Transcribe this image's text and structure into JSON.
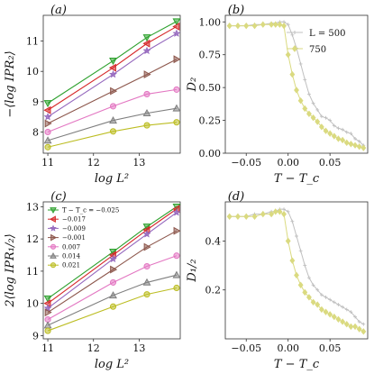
{
  "colors": {
    "green": "#2ca02c",
    "red": "#d62728",
    "purple": "#9467bd",
    "brown": "#8c564b",
    "pink": "#e377c2",
    "gray": "#7f7f7f",
    "olive": "#bcbd22",
    "lightgray": "#c0c0c0",
    "khaki": "#dada80"
  },
  "chart_data": [
    {
      "id": "a",
      "panel_label": "(a)",
      "type": "line",
      "xlabel": "log L²",
      "ylabel": "−⟨log IPR₂⟩",
      "xlim": [
        10.9,
        13.9
      ],
      "ylim": [
        7.3,
        11.85
      ],
      "xticks": [
        "11",
        "12",
        "13"
      ],
      "yticks": [
        "8",
        "9",
        "10",
        "11"
      ],
      "x": [
        11.0,
        12.43,
        13.17,
        13.82
      ],
      "series": [
        {
          "color": "#2ca02c",
          "marker": "tri_down",
          "values": [
            8.95,
            10.35,
            11.12,
            11.65
          ]
        },
        {
          "color": "#d62728",
          "marker": "tri_left",
          "values": [
            8.72,
            10.12,
            10.92,
            11.48
          ]
        },
        {
          "color": "#9467bd",
          "marker": "star",
          "values": [
            8.5,
            9.9,
            10.68,
            11.25
          ]
        },
        {
          "color": "#8c564b",
          "marker": "tri_right",
          "values": [
            8.28,
            9.35,
            9.9,
            10.4
          ]
        },
        {
          "color": "#e377c2",
          "marker": "circle",
          "values": [
            8.0,
            8.85,
            9.25,
            9.4
          ]
        },
        {
          "color": "#7f7f7f",
          "marker": "tri_up",
          "values": [
            7.72,
            8.38,
            8.62,
            8.78
          ]
        },
        {
          "color": "#bcbd22",
          "marker": "circle",
          "values": [
            7.5,
            8.02,
            8.22,
            8.32
          ]
        }
      ]
    },
    {
      "id": "b",
      "panel_label": "(b)",
      "type": "line",
      "xlabel": "T − T_c",
      "ylabel": "D₂",
      "xlim": [
        -0.075,
        0.095
      ],
      "ylim": [
        0.0,
        1.05
      ],
      "xticks": [
        "−0.05",
        "0.00",
        "0.05"
      ],
      "yticks": [
        "0.00",
        "0.25",
        "0.50",
        "0.75",
        "1.00"
      ],
      "legend": [
        {
          "label": "L = 500",
          "color": "#c0c0c0",
          "marker": "plus"
        },
        {
          "label": "750",
          "color": "#dada80",
          "marker": "diamond"
        }
      ],
      "series": [
        {
          "name": "L = 500",
          "color": "#c0c0c0",
          "marker": "plus",
          "x": [
            -0.07,
            -0.06,
            -0.05,
            -0.04,
            -0.03,
            -0.02,
            -0.015,
            -0.01,
            -0.005,
            0.0,
            0.005,
            0.01,
            0.015,
            0.02,
            0.025,
            0.03,
            0.035,
            0.04,
            0.045,
            0.05,
            0.055,
            0.06,
            0.065,
            0.07,
            0.075,
            0.08,
            0.085,
            0.09
          ],
          "values": [
            0.97,
            0.97,
            0.97,
            0.98,
            0.98,
            0.99,
            0.99,
            1.0,
            1.0,
            0.98,
            0.9,
            0.8,
            0.68,
            0.56,
            0.45,
            0.38,
            0.33,
            0.28,
            0.27,
            0.25,
            0.21,
            0.19,
            0.18,
            0.16,
            0.15,
            0.11,
            0.09,
            0.06
          ]
        },
        {
          "name": "750",
          "color": "#dada80",
          "marker": "diamond",
          "x": [
            -0.07,
            -0.06,
            -0.05,
            -0.04,
            -0.03,
            -0.02,
            -0.015,
            -0.01,
            -0.005,
            0.0,
            0.005,
            0.01,
            0.015,
            0.02,
            0.025,
            0.03,
            0.035,
            0.04,
            0.045,
            0.05,
            0.055,
            0.06,
            0.065,
            0.07,
            0.075,
            0.08,
            0.085,
            0.09
          ],
          "values": [
            0.97,
            0.97,
            0.97,
            0.97,
            0.98,
            0.98,
            0.98,
            0.98,
            0.97,
            0.75,
            0.6,
            0.48,
            0.4,
            0.34,
            0.3,
            0.27,
            0.24,
            0.2,
            0.17,
            0.15,
            0.13,
            0.11,
            0.1,
            0.08,
            0.07,
            0.06,
            0.05,
            0.04
          ]
        }
      ]
    },
    {
      "id": "c",
      "panel_label": "(c)",
      "type": "line",
      "xlabel": "log L²",
      "ylabel": "2⟨log IPR₁/₂⟩",
      "xlim": [
        10.9,
        13.9
      ],
      "ylim": [
        8.9,
        13.15
      ],
      "xticks": [
        "11",
        "12",
        "13"
      ],
      "yticks": [
        "9",
        "10",
        "11",
        "12",
        "13"
      ],
      "x": [
        11.0,
        12.43,
        13.17,
        13.82
      ],
      "legend_title": "T − T_c = −0.025",
      "series": [
        {
          "name": "T − T_c = −0.025",
          "color": "#2ca02c",
          "marker": "tri_down",
          "values": [
            10.15,
            11.6,
            12.38,
            13.0
          ]
        },
        {
          "name": "−0.017",
          "color": "#d62728",
          "marker": "tri_left",
          "values": [
            10.0,
            11.5,
            12.28,
            12.93
          ]
        },
        {
          "name": "−0.009",
          "color": "#9467bd",
          "marker": "star",
          "values": [
            9.85,
            11.38,
            12.15,
            12.82
          ]
        },
        {
          "name": "−0.001",
          "color": "#8c564b",
          "marker": "tri_right",
          "values": [
            9.72,
            11.05,
            11.75,
            12.25
          ]
        },
        {
          "name": "0.007",
          "color": "#e377c2",
          "marker": "circle",
          "values": [
            9.5,
            10.65,
            11.15,
            11.48
          ]
        },
        {
          "name": "0.014",
          "color": "#7f7f7f",
          "marker": "tri_up",
          "values": [
            9.32,
            10.25,
            10.65,
            10.88
          ]
        },
        {
          "name": "0.021",
          "color": "#bcbd22",
          "marker": "circle",
          "values": [
            9.15,
            9.9,
            10.28,
            10.48
          ]
        }
      ]
    },
    {
      "id": "d",
      "panel_label": "(d)",
      "type": "line",
      "xlabel": "T − T_c",
      "ylabel": "D₁/₂",
      "xlim": [
        -0.075,
        0.095
      ],
      "ylim": [
        0.0,
        0.56
      ],
      "xticks": [
        "−0.05",
        "0.00",
        "0.05"
      ],
      "yticks": [
        "0.2",
        "0.4"
      ],
      "series": [
        {
          "name": "L = 500",
          "color": "#c0c0c0",
          "marker": "plus",
          "x": [
            -0.07,
            -0.06,
            -0.05,
            -0.04,
            -0.03,
            -0.02,
            -0.015,
            -0.01,
            -0.005,
            0.0,
            0.005,
            0.01,
            0.015,
            0.02,
            0.025,
            0.03,
            0.035,
            0.04,
            0.045,
            0.05,
            0.055,
            0.06,
            0.065,
            0.07,
            0.075,
            0.08,
            0.085,
            0.09
          ],
          "values": [
            0.5,
            0.5,
            0.5,
            0.51,
            0.51,
            0.52,
            0.52,
            0.53,
            0.53,
            0.52,
            0.48,
            0.42,
            0.36,
            0.3,
            0.25,
            0.22,
            0.2,
            0.18,
            0.17,
            0.16,
            0.15,
            0.14,
            0.13,
            0.12,
            0.11,
            0.09,
            0.07,
            0.06
          ]
        },
        {
          "name": "750",
          "color": "#dada80",
          "marker": "diamond",
          "x": [
            -0.07,
            -0.06,
            -0.05,
            -0.04,
            -0.03,
            -0.02,
            -0.015,
            -0.01,
            -0.005,
            0.0,
            0.005,
            0.01,
            0.015,
            0.02,
            0.025,
            0.03,
            0.035,
            0.04,
            0.045,
            0.05,
            0.055,
            0.06,
            0.065,
            0.07,
            0.075,
            0.08,
            0.085,
            0.09
          ],
          "values": [
            0.5,
            0.5,
            0.5,
            0.5,
            0.51,
            0.51,
            0.52,
            0.52,
            0.51,
            0.4,
            0.32,
            0.26,
            0.22,
            0.19,
            0.17,
            0.15,
            0.14,
            0.12,
            0.11,
            0.1,
            0.09,
            0.08,
            0.07,
            0.06,
            0.05,
            0.05,
            0.04,
            0.03
          ]
        }
      ]
    }
  ]
}
